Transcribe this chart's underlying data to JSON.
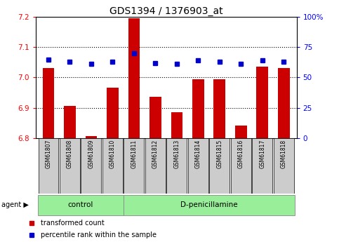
{
  "title": "GDS1394 / 1376903_at",
  "samples": [
    "GSM61807",
    "GSM61808",
    "GSM61809",
    "GSM61810",
    "GSM61811",
    "GSM61812",
    "GSM61813",
    "GSM61814",
    "GSM61815",
    "GSM61816",
    "GSM61817",
    "GSM61818"
  ],
  "transformed_count": [
    7.03,
    6.905,
    6.805,
    6.965,
    7.195,
    6.935,
    6.885,
    6.995,
    6.995,
    6.84,
    7.035,
    7.03
  ],
  "percentile_rank": [
    65,
    63,
    61,
    63,
    70,
    62,
    61,
    64,
    63,
    61,
    64,
    63
  ],
  "n_control": 4,
  "n_treatment": 8,
  "control_label": "control",
  "treatment_label": "D-penicillamine",
  "agent_label": "agent",
  "ylim_left": [
    6.8,
    7.2
  ],
  "ylim_right": [
    0,
    100
  ],
  "yticks_left": [
    6.8,
    6.9,
    7.0,
    7.1,
    7.2
  ],
  "yticks_right": [
    0,
    25,
    50,
    75,
    100
  ],
  "bar_color": "#cc0000",
  "dot_color": "#0000cc",
  "bar_bottom": 6.8,
  "group_bg": "#99ee99",
  "tick_label_bg": "#cccccc",
  "legend_bar_label": "transformed count",
  "legend_dot_label": "percentile rank within the sample",
  "title_fontsize": 10,
  "tick_fontsize": 7.5,
  "sample_fontsize": 5.5,
  "group_fontsize": 7.5,
  "legend_fontsize": 7
}
